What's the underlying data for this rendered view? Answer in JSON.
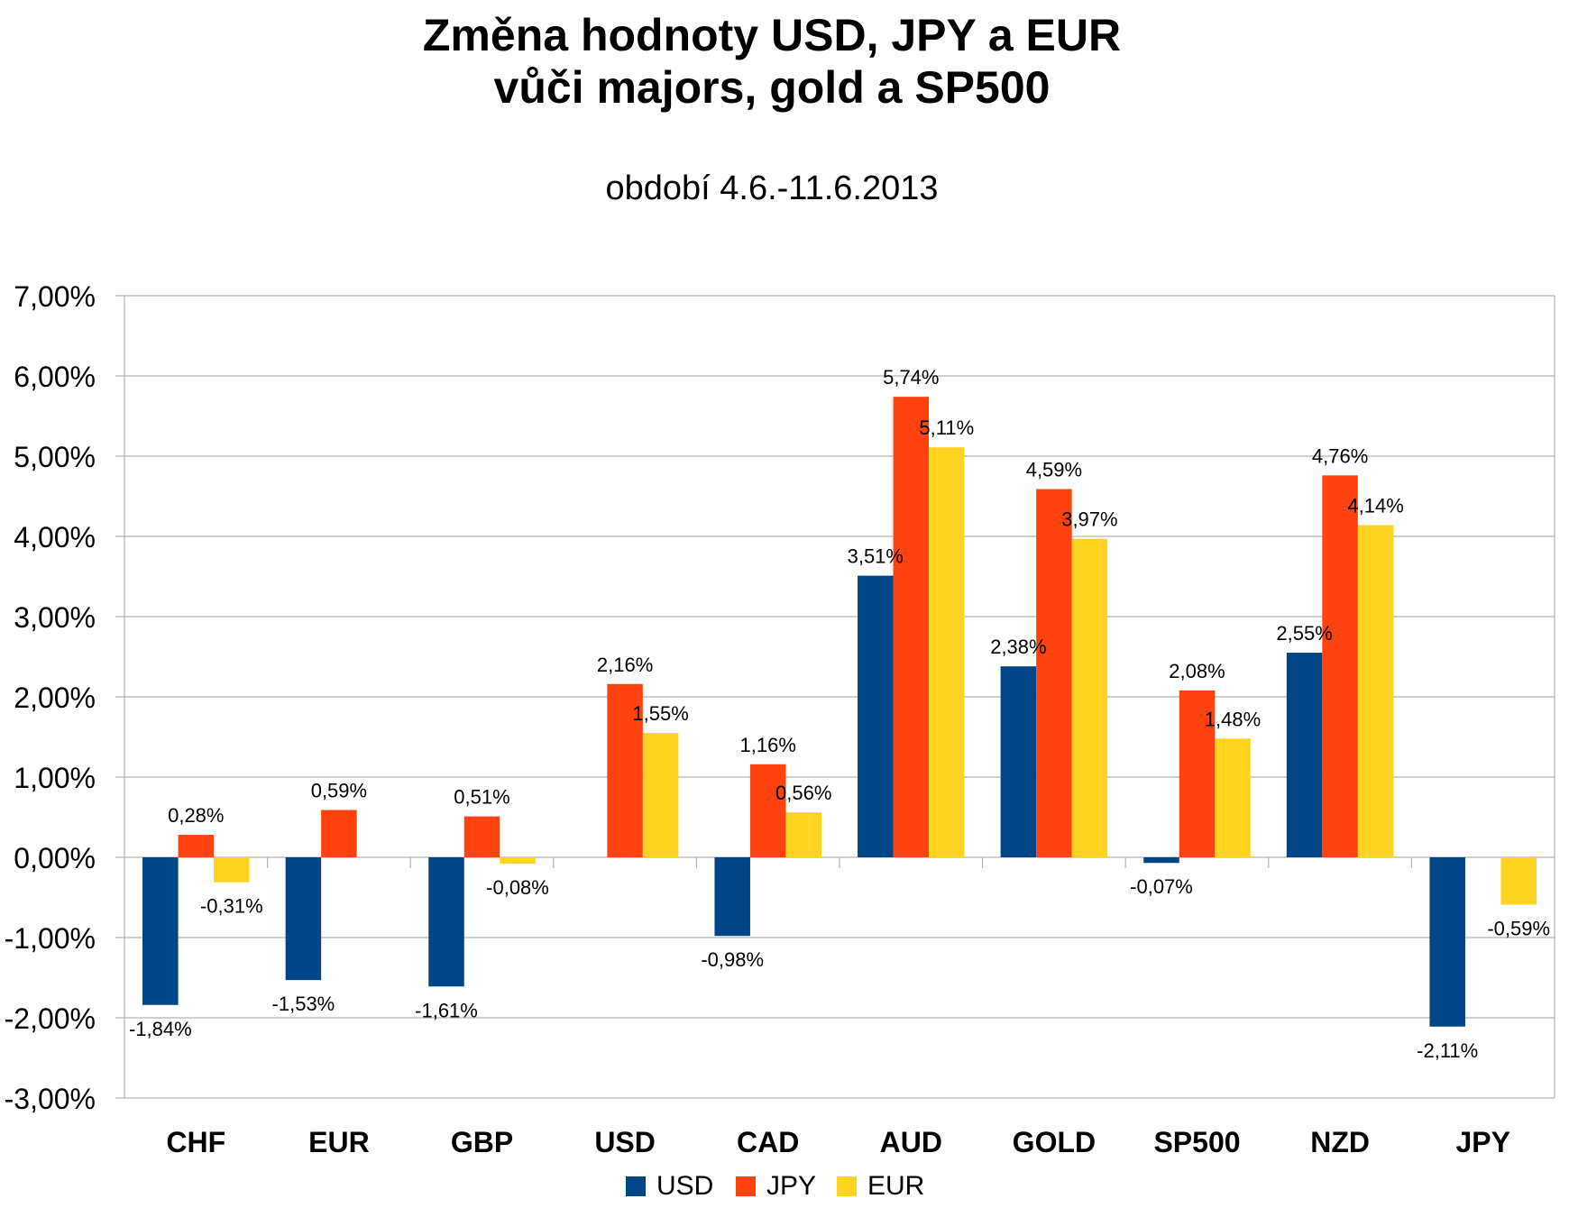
{
  "chart_data": {
    "type": "bar",
    "title_line1": "Změna hodnoty USD, JPY a EUR",
    "title_line2": "vůči majors, gold a SP500",
    "subtitle": "období 4.6.-11.6.2013",
    "categories": [
      "CHF",
      "EUR",
      "GBP",
      "USD",
      "CAD",
      "AUD",
      "GOLD",
      "SP500",
      "NZD",
      "JPY"
    ],
    "series": [
      {
        "name": "USD",
        "color": "#004586",
        "values": [
          -1.84,
          -1.53,
          -1.61,
          null,
          -0.98,
          3.51,
          2.38,
          -0.07,
          2.55,
          -2.11
        ],
        "labels": [
          "-1,84%",
          "-1,53%",
          "-1,61%",
          null,
          "-0,98%",
          "3,51%",
          "2,38%",
          "-0,07%",
          "2,55%",
          "-2,11%"
        ]
      },
      {
        "name": "JPY",
        "color": "#ff420e",
        "values": [
          0.28,
          0.59,
          0.51,
          2.16,
          1.16,
          5.74,
          4.59,
          2.08,
          4.76,
          null
        ],
        "labels": [
          "0,28%",
          "0,59%",
          "0,51%",
          "2,16%",
          "1,16%",
          "5,74%",
          "4,59%",
          "2,08%",
          "4,76%",
          null
        ]
      },
      {
        "name": "EUR",
        "color": "#ffd320",
        "values": [
          -0.31,
          null,
          -0.08,
          1.55,
          0.56,
          5.11,
          3.97,
          1.48,
          4.14,
          -0.59
        ],
        "labels": [
          "-0,31%",
          null,
          "-0,08%",
          "1,55%",
          "0,56%",
          "5,11%",
          "3,97%",
          "1,48%",
          "4,14%",
          "-0,59%"
        ]
      }
    ],
    "ylim": [
      -3,
      7
    ],
    "ytick_values": [
      7,
      6,
      5,
      4,
      3,
      2,
      1,
      0,
      -1,
      -2,
      -3
    ],
    "ytick_labels": [
      "7,00%",
      "6,00%",
      "5,00%",
      "4,00%",
      "3,00%",
      "2,00%",
      "1,00%",
      "0,00%",
      "-1,00%",
      "-2,00%",
      "-3,00%"
    ],
    "grid": true,
    "legend_position": "bottom"
  }
}
